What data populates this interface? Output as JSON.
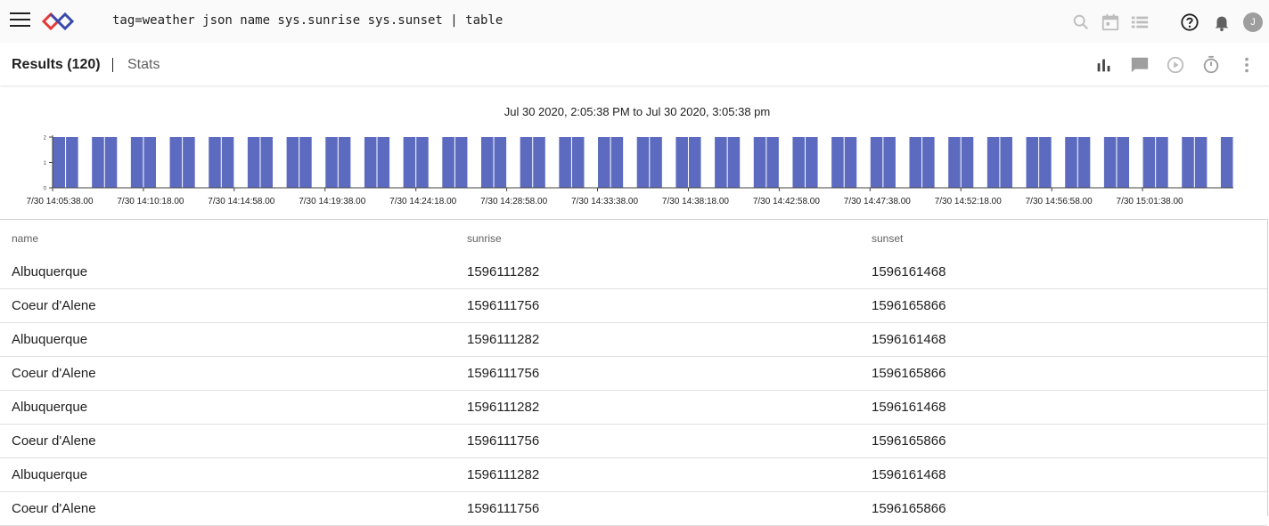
{
  "topbar": {
    "query": "tag=weather json name sys.sunrise sys.sunset | table",
    "icons": [
      "menu-icon",
      "logo-icon",
      "search-icon",
      "calendar-icon",
      "list-icon",
      "help-icon",
      "bell-icon"
    ],
    "avatar_initial": "J"
  },
  "results": {
    "tab_results": "Results (120)",
    "tab_stats": "Stats",
    "icons": [
      "bar-chart-icon",
      "comment-icon",
      "play-icon",
      "timer-icon",
      "more-vert-icon"
    ]
  },
  "chart_data": {
    "type": "bar",
    "title": "Jul 30 2020, 2:05:38 PM to Jul 30 2020, 3:05:38 pm",
    "color": "#5c6bc0",
    "ylim": [
      0,
      2
    ],
    "y_ticks": [
      "0",
      "1",
      "2"
    ],
    "x_tick_labels": [
      "7/30 14:05:38.00",
      "7/30 14:10:18.00",
      "7/30 14:14:58.00",
      "7/30 14:19:38.00",
      "7/30 14:24:18.00",
      "7/30 14:28:58.00",
      "7/30 14:33:38.00",
      "7/30 14:38:18.00",
      "7/30 14:42:58.00",
      "7/30 14:47:38.00",
      "7/30 14:52:18.00",
      "7/30 14:56:58.00",
      "7/30 15:01:38.00"
    ],
    "values": [
      2,
      2,
      0,
      2,
      2,
      0,
      2,
      2,
      0,
      2,
      2,
      0,
      2,
      2,
      0,
      2,
      2,
      0,
      2,
      2,
      0,
      2,
      2,
      0,
      2,
      2,
      0,
      2,
      2,
      0,
      2,
      2,
      0,
      2,
      2,
      0,
      2,
      2,
      0,
      2,
      2,
      0,
      2,
      2,
      0,
      2,
      2,
      0,
      2,
      2,
      0,
      2,
      2,
      0,
      2,
      2,
      0,
      2,
      2,
      0,
      2,
      2,
      0,
      2,
      2,
      0,
      2,
      2,
      0,
      2,
      2,
      0,
      2,
      2,
      0,
      2,
      2,
      0,
      2,
      2,
      0,
      2,
      2,
      0,
      2,
      2,
      0,
      2,
      2,
      0,
      2
    ]
  },
  "table": {
    "columns": [
      "name",
      "sunrise",
      "sunset"
    ],
    "rows": [
      [
        "Albuquerque",
        "1596111282",
        "1596161468"
      ],
      [
        "Coeur d'Alene",
        "1596111756",
        "1596165866"
      ],
      [
        "Albuquerque",
        "1596111282",
        "1596161468"
      ],
      [
        "Coeur d'Alene",
        "1596111756",
        "1596165866"
      ],
      [
        "Albuquerque",
        "1596111282",
        "1596161468"
      ],
      [
        "Coeur d'Alene",
        "1596111756",
        "1596165866"
      ],
      [
        "Albuquerque",
        "1596111282",
        "1596161468"
      ],
      [
        "Coeur d'Alene",
        "1596111756",
        "1596165866"
      ]
    ]
  }
}
